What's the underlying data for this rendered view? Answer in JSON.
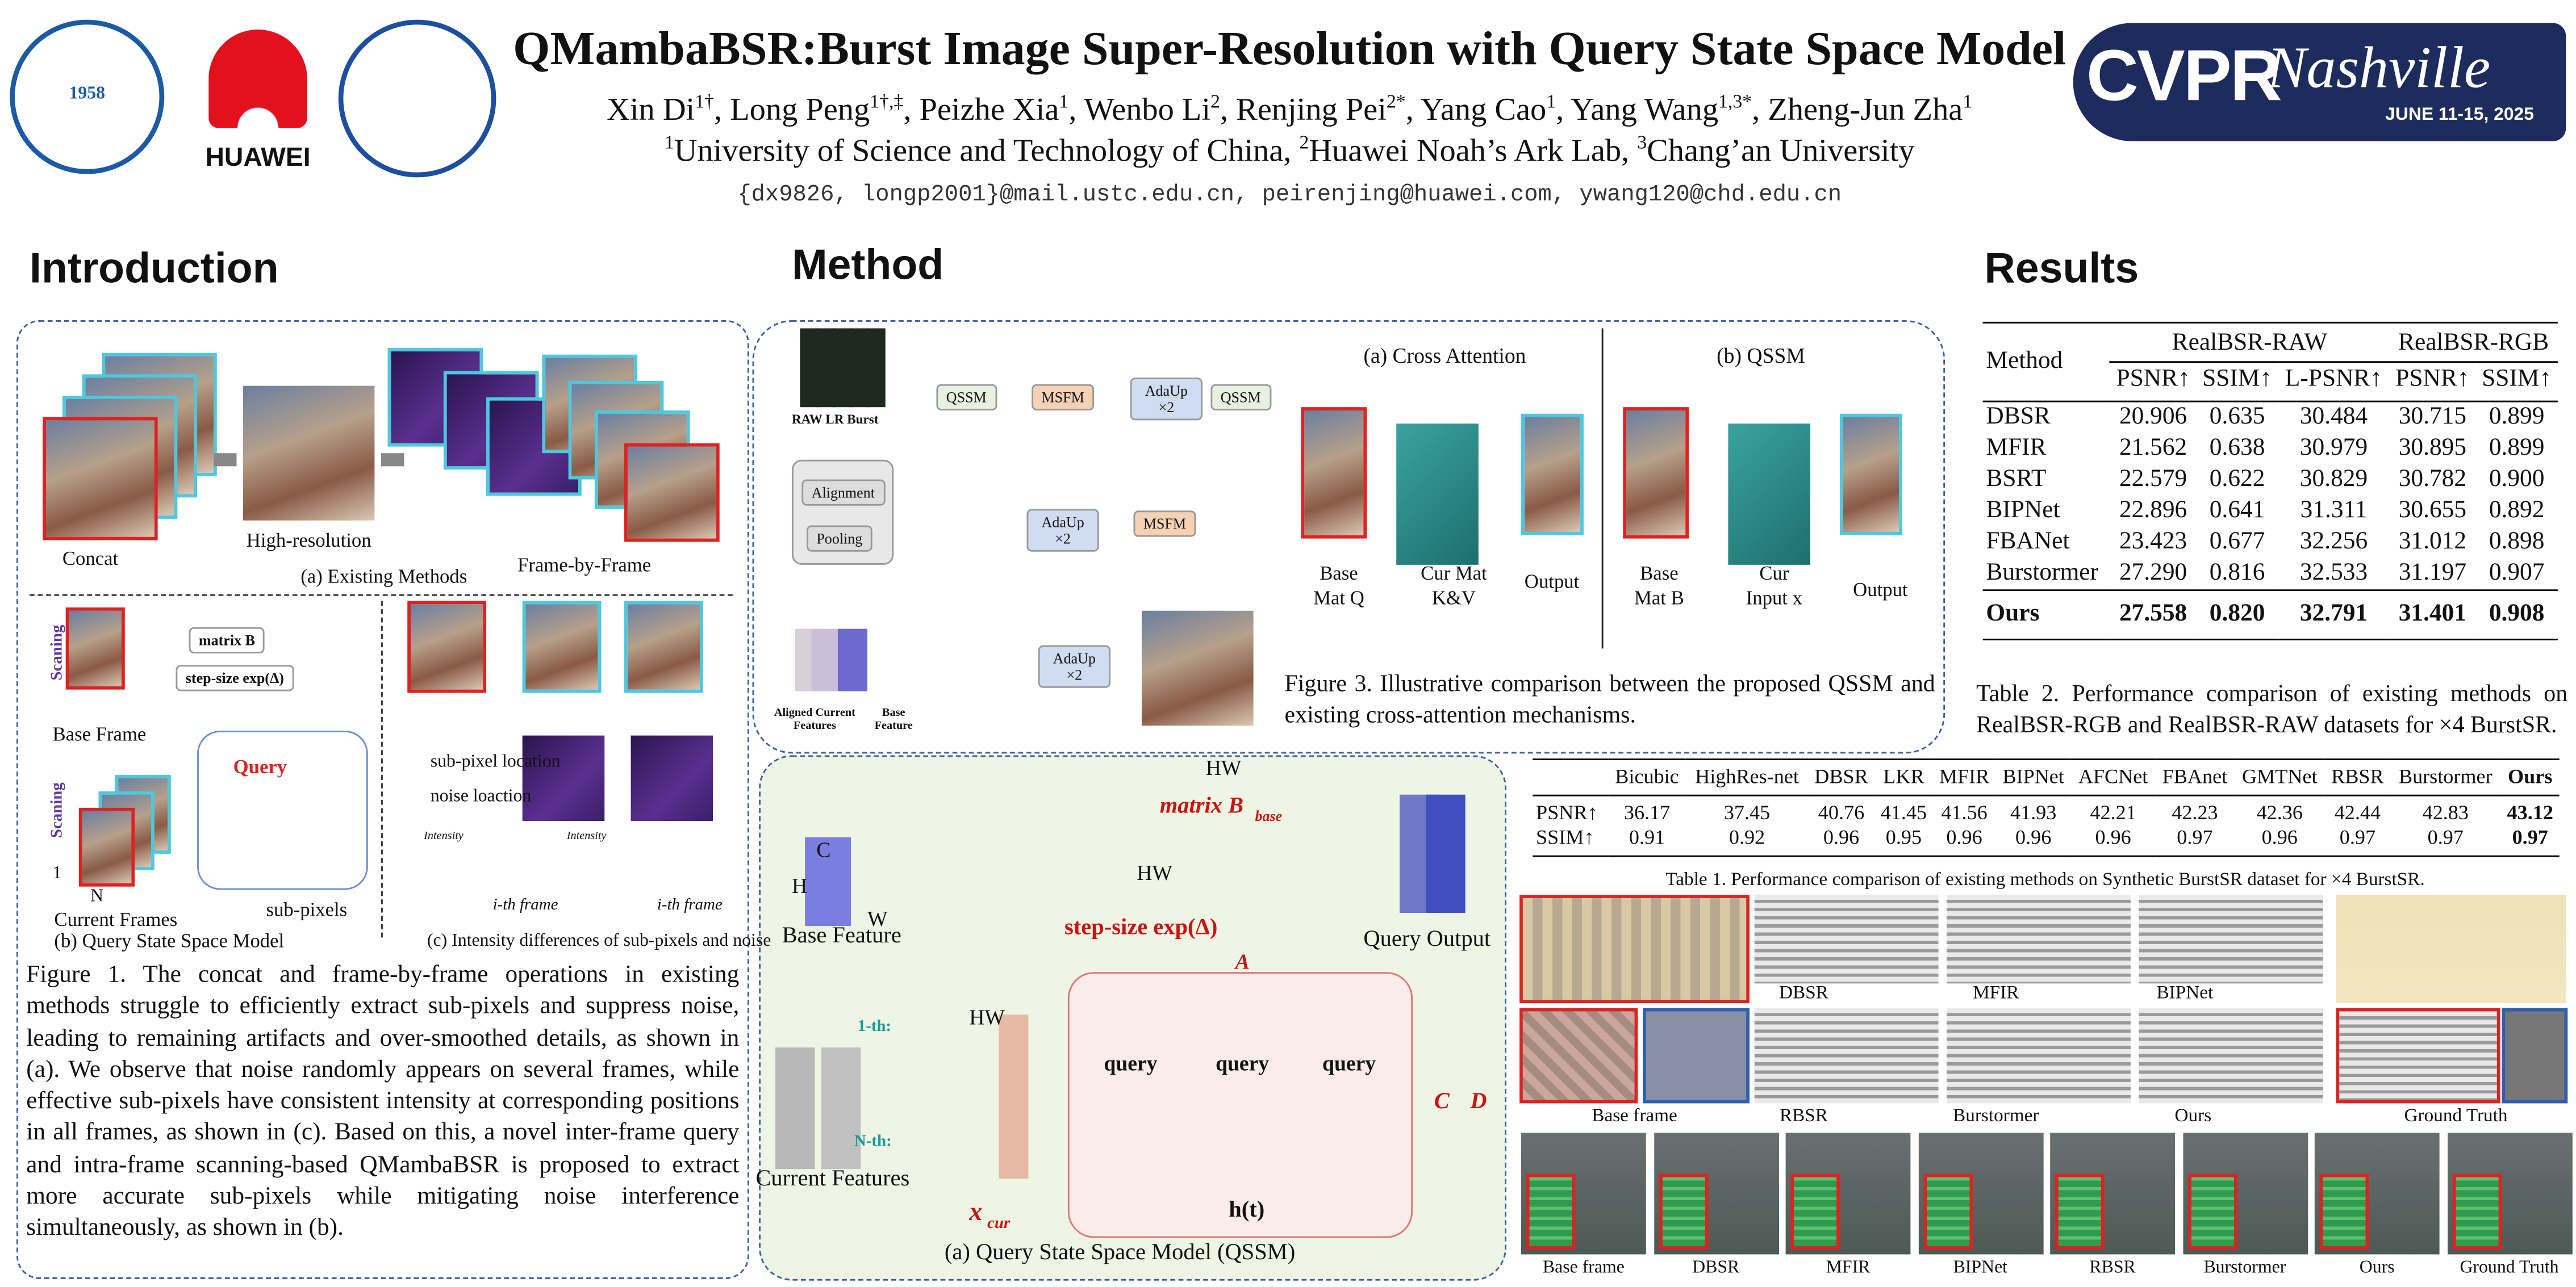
{
  "header": {
    "title": "QMambaBSR:Burst Image Super-Resolution with Query State Space Model",
    "authors": [
      {
        "name": "Xin Di",
        "sup": "1†"
      },
      {
        "name": "Long Peng",
        "sup": "1†,‡"
      },
      {
        "name": "Peizhe Xia",
        "sup": "1"
      },
      {
        "name": "Wenbo Li",
        "sup": "2"
      },
      {
        "name": "Renjing Pei",
        "sup": "2*"
      },
      {
        "name": "Yang Cao",
        "sup": "1"
      },
      {
        "name": "Yang Wang",
        "sup": "1,3*"
      },
      {
        "name": "Zheng-Jun Zha",
        "sup": "1"
      }
    ],
    "affiliations": [
      {
        "sup": "1",
        "name": "University of Science and Technology of China"
      },
      {
        "sup": "2",
        "name": "Huawei Noah’s Ark Lab"
      },
      {
        "sup": "3",
        "name": "Chang’an University"
      }
    ],
    "emails": "{dx9826, longp2001}@mail.ustc.edu.cn, peirenjing@huawei.com, ywang120@chd.edu.cn",
    "logos": {
      "ustc": "1958",
      "huawei": "HUAWEI",
      "cvpr": "CVPR",
      "city": "Nashville",
      "dates": "JUNE 11-15, 2025"
    }
  },
  "introduction": {
    "heading": "Introduction",
    "labels": [
      "Concat",
      "High-resolution",
      "Frame-by-Frame",
      "(a) Existing Methods",
      "matrix B",
      "step-size exp(Δ)",
      "Scaning",
      "Base Frame",
      "Query",
      "Scaning",
      "1",
      "N",
      "Current Frames",
      "sub-pixels",
      "(b) Query State Space Model",
      "sub-pixel location",
      "noise loaction",
      "Intensity",
      "Intensity",
      "i-th frame",
      "i-th frame",
      "(c) Intensity differences of sub-pixels and noise"
    ],
    "caption": "Figure 1. The concat and frame-by-frame operations in existing methods struggle to efficiently extract sub-pixels and suppress noise, leading to remaining artifacts and over-smoothed details, as shown in (a). We observe that noise randomly appears on several frames, while effective sub-pixels have consistent intensity at corresponding positions in all frames, as shown in (c). Based on this, a novel inter-frame query and intra-frame scanning-based QMambaBSR is proposed to extract more accurate sub-pixels while mitigating noise interference simultaneously, as shown in (b)."
  },
  "method": {
    "heading": "Method",
    "pipeline_labels": [
      "RAW LR Burst",
      "QSSM",
      "MSFM",
      "AdaUp ×2",
      "QSSM",
      "Alignment",
      "Pooling",
      "AdaUp ×2",
      "MSFM",
      "AdaUp ×2",
      "Aligned Current Features",
      "Base Feature",
      "(a) Cross Attention",
      "(b) QSSM",
      "Base Mat Q",
      "Cur Mat K&V",
      "Output",
      "Base Mat B",
      "Cur Input x",
      "Output"
    ],
    "figure3_caption": "Figure 3. Illustrative comparison between the proposed QSSM and existing cross-attention mechanisms.",
    "qssm_labels": [
      "C",
      "H",
      "W",
      "Base Feature",
      "HW",
      "matrix B",
      "base",
      "HW",
      "step-size exp(Δ)",
      "A",
      "Query Output",
      "Current Features",
      "x",
      "cur",
      "1-th:",
      "N-th:",
      "query",
      "query",
      "query",
      "h(t)",
      "C",
      "D",
      "(a) Query State Space Model (QSSM)",
      "HW"
    ]
  },
  "results": {
    "heading": "Results",
    "table2": {
      "method_header": "Method",
      "groups": [
        "RealBSR-RAW",
        "RealBSR-RGB"
      ],
      "columns": [
        "PSNR↑",
        "SSIM↑",
        "L-PSNR↑",
        "PSNR↑",
        "SSIM↑"
      ],
      "rows": [
        [
          "DBSR",
          "20.906",
          "0.635",
          "30.484",
          "30.715",
          "0.899"
        ],
        [
          "MFIR",
          "21.562",
          "0.638",
          "30.979",
          "30.895",
          "0.899"
        ],
        [
          "BSRT",
          "22.579",
          "0.622",
          "30.829",
          "30.782",
          "0.900"
        ],
        [
          "BIPNet",
          "22.896",
          "0.641",
          "31.311",
          "30.655",
          "0.892"
        ],
        [
          "FBANet",
          "23.423",
          "0.677",
          "32.256",
          "31.012",
          "0.898"
        ],
        [
          "Burstormer",
          "27.290",
          "0.816",
          "32.533",
          "31.197",
          "0.907"
        ],
        [
          "Ours",
          "27.558",
          "0.820",
          "32.791",
          "31.401",
          "0.908"
        ]
      ],
      "caption": "Table 2.  Performance comparison of existing methods on RealBSR-RGB and RealBSR-RAW datasets for ×4 BurstSR."
    },
    "table1": {
      "columns": [
        "Bicubic",
        "HighRes-net",
        "DBSR",
        "LKR",
        "MFIR",
        "BIPNet",
        "AFCNet",
        "FBAnet",
        "GMTNet",
        "RBSR",
        "Burstormer",
        "Ours"
      ],
      "rows": [
        [
          "PSNR↑",
          "36.17",
          "37.45",
          "40.76",
          "41.45",
          "41.56",
          "41.93",
          "42.21",
          "42.23",
          "42.36",
          "42.44",
          "42.83",
          "43.12"
        ],
        [
          "SSIM↑",
          "0.91",
          "0.92",
          "0.96",
          "0.95",
          "0.96",
          "0.96",
          "0.96",
          "0.97",
          "0.96",
          "0.97",
          "0.97",
          "0.97"
        ]
      ],
      "caption": "Table 1. Performance comparison of existing methods on Synthetic BurstSR dataset for ×4 BurstSR."
    },
    "comparison_1": [
      "Base frame",
      "DBSR",
      "MFIR",
      "BIPNet",
      "RBSR",
      "Burstormer",
      "Ours",
      "Ground Truth"
    ],
    "comparison_2": [
      "Base frame",
      "DBSR",
      "MFIR",
      "BIPNet",
      "RBSR",
      "Burstormer",
      "Ours",
      "Ground Truth"
    ]
  }
}
